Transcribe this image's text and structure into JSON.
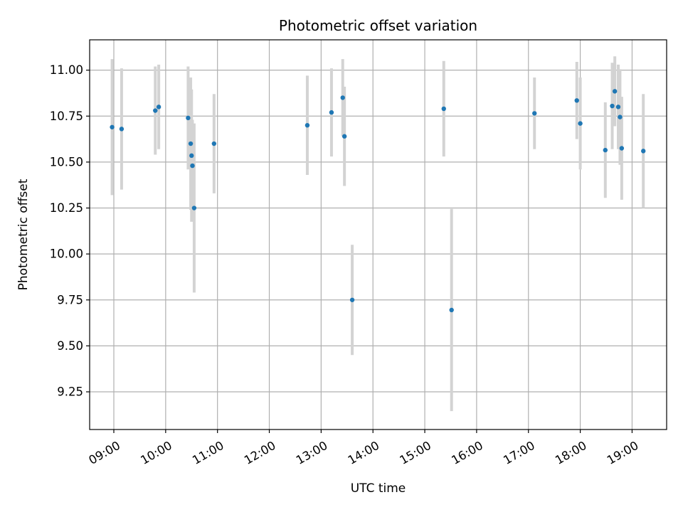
{
  "chart_data": {
    "type": "scatter",
    "title": "Photometric offset variation",
    "xlabel": "UTC time",
    "ylabel": "Photometric offset",
    "xlim": [
      "08:32",
      "19:40"
    ],
    "ylim": [
      9.045,
      11.165
    ],
    "x_ticks": [
      "09:00",
      "10:00",
      "11:00",
      "12:00",
      "13:00",
      "14:00",
      "15:00",
      "16:00",
      "17:00",
      "18:00",
      "19:00"
    ],
    "y_ticks": [
      "9.25",
      "9.50",
      "9.75",
      "10.00",
      "10.25",
      "10.50",
      "10.75",
      "11.00"
    ],
    "grid": true,
    "colors": {
      "point": "#1f77b4",
      "errorbar": "#d3d3d3",
      "grid": "#b0b0b0"
    },
    "points": [
      {
        "x": "08:58",
        "y": 10.69,
        "yerr": 0.37
      },
      {
        "x": "09:09",
        "y": 10.68,
        "yerr": 0.33
      },
      {
        "x": "09:48",
        "y": 10.78,
        "yerr": 0.24
      },
      {
        "x": "09:52",
        "y": 10.8,
        "yerr": 0.23
      },
      {
        "x": "10:26",
        "y": 10.74,
        "yerr": 0.28
      },
      {
        "x": "10:29",
        "y": 10.6,
        "yerr": 0.36
      },
      {
        "x": "10:30",
        "y": 10.535,
        "yerr": 0.36
      },
      {
        "x": "10:31",
        "y": 10.48,
        "yerr": 0.25
      },
      {
        "x": "10:33",
        "y": 10.25,
        "yerr": 0.46
      },
      {
        "x": "10:56",
        "y": 10.6,
        "yerr": 0.27
      },
      {
        "x": "12:44",
        "y": 10.7,
        "yerr": 0.27
      },
      {
        "x": "13:12",
        "y": 10.77,
        "yerr": 0.24
      },
      {
        "x": "13:25",
        "y": 10.85,
        "yerr": 0.21
      },
      {
        "x": "13:27",
        "y": 10.64,
        "yerr": 0.27
      },
      {
        "x": "13:36",
        "y": 9.75,
        "yerr": 0.3
      },
      {
        "x": "15:22",
        "y": 10.79,
        "yerr": 0.26
      },
      {
        "x": "15:31",
        "y": 9.695,
        "yerr": 0.55
      },
      {
        "x": "17:07",
        "y": 10.765,
        "yerr": 0.195
      },
      {
        "x": "17:56",
        "y": 10.835,
        "yerr": 0.21
      },
      {
        "x": "18:00",
        "y": 10.71,
        "yerr": 0.25
      },
      {
        "x": "18:29",
        "y": 10.565,
        "yerr": 0.26
      },
      {
        "x": "18:37",
        "y": 10.805,
        "yerr": 0.235
      },
      {
        "x": "18:40",
        "y": 10.885,
        "yerr": 0.19
      },
      {
        "x": "18:44",
        "y": 10.8,
        "yerr": 0.23
      },
      {
        "x": "18:46",
        "y": 10.745,
        "yerr": 0.26
      },
      {
        "x": "18:48",
        "y": 10.575,
        "yerr": 0.28
      },
      {
        "x": "19:13",
        "y": 10.56,
        "yerr": 0.31
      }
    ]
  }
}
